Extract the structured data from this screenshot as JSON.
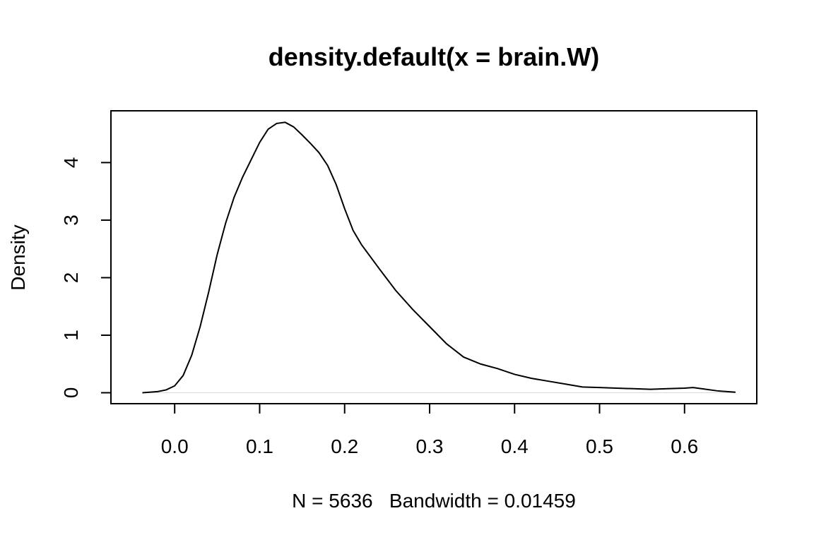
{
  "chart_data": {
    "type": "line",
    "title": "density.default(x = brain.W)",
    "xlabel": "N = 5636   Bandwidth = 0.01459",
    "ylabel": "Density",
    "xlim": [
      -0.075,
      0.685
    ],
    "ylim": [
      -0.19,
      4.9
    ],
    "xticks": [
      0.0,
      0.1,
      0.2,
      0.3,
      0.4,
      0.5,
      0.6
    ],
    "xtick_labels": [
      "0.0",
      "0.1",
      "0.2",
      "0.3",
      "0.4",
      "0.5",
      "0.6"
    ],
    "yticks": [
      0,
      1,
      2,
      3,
      4
    ],
    "ytick_labels": [
      "0",
      "1",
      "2",
      "3",
      "4"
    ],
    "grid": false,
    "series": [
      {
        "x": [
          -0.038,
          -0.02,
          -0.01,
          0.0,
          0.01,
          0.02,
          0.03,
          0.04,
          0.05,
          0.06,
          0.07,
          0.08,
          0.09,
          0.1,
          0.11,
          0.12,
          0.13,
          0.14,
          0.15,
          0.16,
          0.17,
          0.18,
          0.19,
          0.2,
          0.21,
          0.22,
          0.24,
          0.26,
          0.28,
          0.3,
          0.32,
          0.34,
          0.36,
          0.38,
          0.4,
          0.42,
          0.44,
          0.46,
          0.48,
          0.5,
          0.52,
          0.54,
          0.56,
          0.58,
          0.6,
          0.61,
          0.62,
          0.64,
          0.66
        ],
        "y": [
          0.0,
          0.02,
          0.05,
          0.12,
          0.3,
          0.65,
          1.15,
          1.75,
          2.4,
          2.95,
          3.4,
          3.75,
          4.05,
          4.35,
          4.58,
          4.68,
          4.7,
          4.62,
          4.48,
          4.33,
          4.17,
          3.95,
          3.62,
          3.2,
          2.82,
          2.57,
          2.17,
          1.78,
          1.45,
          1.15,
          0.85,
          0.62,
          0.5,
          0.42,
          0.32,
          0.25,
          0.2,
          0.15,
          0.1,
          0.09,
          0.08,
          0.07,
          0.06,
          0.07,
          0.08,
          0.09,
          0.07,
          0.03,
          0.01
        ]
      }
    ]
  }
}
